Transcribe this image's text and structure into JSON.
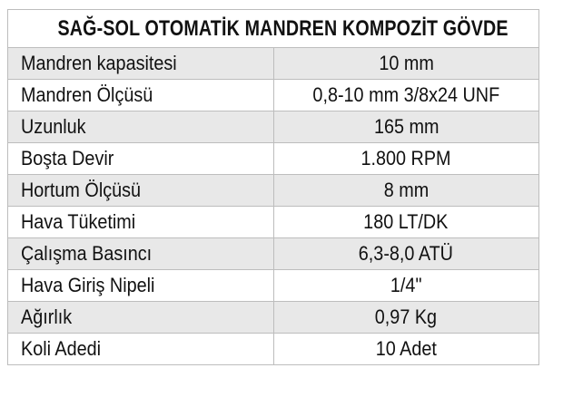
{
  "table": {
    "title": "SAĞ-SOL OTOMATİK MANDREN KOMPOZİT GÖVDE",
    "rows": [
      {
        "label": "Mandren kapasitesi",
        "value": "10 mm"
      },
      {
        "label": "Mandren Ölçüsü",
        "value": "0,8-10 mm 3/8x24 UNF"
      },
      {
        "label": "Uzunluk",
        "value": "165 mm"
      },
      {
        "label": "Boşta Devir",
        "value": "1.800 RPM"
      },
      {
        "label": "Hortum Ölçüsü",
        "value": "8 mm"
      },
      {
        "label": "Hava Tüketimi",
        "value": "180 LT/DK"
      },
      {
        "label": "Çalışma Basıncı",
        "value": "6,3-8,0 ATÜ"
      },
      {
        "label": "Hava Giriş Nipeli",
        "value": "1/4\""
      },
      {
        "label": "Ağırlık",
        "value": "0,97 Kg"
      },
      {
        "label": "Koli Adedi",
        "value": "10 Adet"
      }
    ]
  }
}
